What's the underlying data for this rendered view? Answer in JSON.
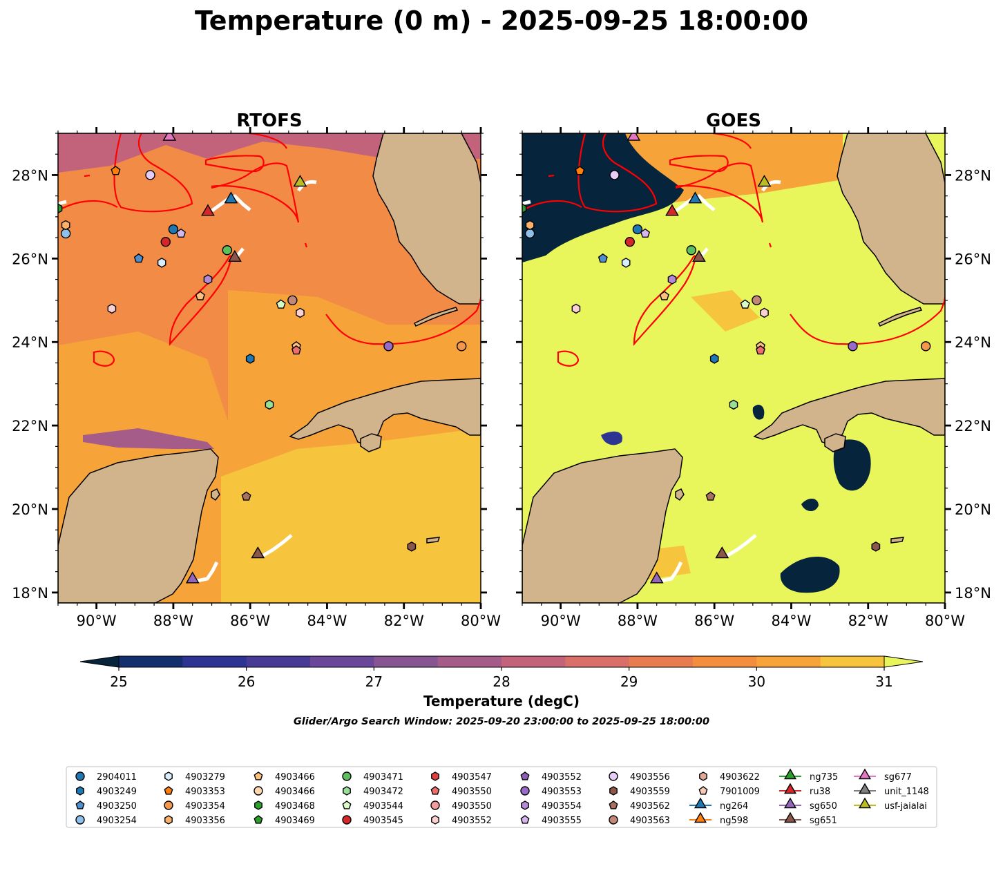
{
  "title": "Temperature (0 m) - 2025-09-25 18:00:00",
  "panels": [
    {
      "title": "RTOFS",
      "base_color": "#f18b45"
    },
    {
      "title": "GOES",
      "base_color": "#e8f65b"
    }
  ],
  "axes": {
    "x_ticks": [
      "90°W",
      "88°W",
      "86°W",
      "84°W",
      "82°W",
      "80°W"
    ],
    "x_values": [
      -90,
      -88,
      -86,
      -84,
      -82,
      -80
    ],
    "y_ticks": [
      "28°N",
      "26°N",
      "24°N",
      "22°N",
      "20°N",
      "18°N"
    ],
    "y_values": [
      28,
      26,
      24,
      22,
      20,
      18
    ],
    "lon_range": [
      -91,
      -80
    ],
    "lat_range": [
      17.75,
      29
    ]
  },
  "colorbar": {
    "label": "Temperature (degC)",
    "ticks": [
      "25",
      "26",
      "27",
      "28",
      "29",
      "30",
      "31"
    ],
    "range": [
      25,
      31
    ],
    "extend": "both",
    "colors": [
      "#06243b",
      "#132f6e",
      "#2e3491",
      "#483b96",
      "#6a4798",
      "#885593",
      "#a65c89",
      "#c3637b",
      "#d86f68",
      "#e87c51",
      "#f28e3e",
      "#f6a43a",
      "#f7c43e",
      "#e9f65b"
    ]
  },
  "window_text": "Glider/Argo Search Window: 2025-09-20 23:00:00 to 2025-09-25 18:00:00",
  "legend": [
    {
      "name": "2904011",
      "marker": "circle",
      "color": "#1f77b4"
    },
    {
      "name": "4903249",
      "marker": "hexagon",
      "color": "#1f77b4"
    },
    {
      "name": "4903250",
      "marker": "pentagon",
      "color": "#4f8fd0"
    },
    {
      "name": "4903254",
      "marker": "circle",
      "color": "#8fc0ea"
    },
    {
      "name": "4903279",
      "marker": "hexagon",
      "color": "#d7eefc"
    },
    {
      "name": "4903353",
      "marker": "pentagon",
      "color": "#ff7f0e"
    },
    {
      "name": "4903354",
      "marker": "circle",
      "color": "#f4974a"
    },
    {
      "name": "4903356",
      "marker": "hexagon",
      "color": "#fbb06b"
    },
    {
      "name": "4903466",
      "marker": "pentagon",
      "color": "#fcc17a"
    },
    {
      "name": "4903466",
      "marker": "circle",
      "color": "#fdd7b0"
    },
    {
      "name": "4903468",
      "marker": "hexagon",
      "color": "#2ca02c"
    },
    {
      "name": "4903469",
      "marker": "pentagon",
      "color": "#2ca02c"
    },
    {
      "name": "4903471",
      "marker": "circle",
      "color": "#5cc15c"
    },
    {
      "name": "4903472",
      "marker": "hexagon",
      "color": "#98e098"
    },
    {
      "name": "4903544",
      "marker": "pentagon",
      "color": "#d8fbc8"
    },
    {
      "name": "4903545",
      "marker": "circle",
      "color": "#d62728"
    },
    {
      "name": "4903547",
      "marker": "hexagon",
      "color": "#e04040"
    },
    {
      "name": "4903550",
      "marker": "pentagon",
      "color": "#ee6e6e"
    },
    {
      "name": "4903550",
      "marker": "circle",
      "color": "#f59b9b"
    },
    {
      "name": "4903552",
      "marker": "hexagon",
      "color": "#fcd1d1"
    },
    {
      "name": "4903552",
      "marker": "pentagon",
      "color": "#8c5fb5"
    },
    {
      "name": "4903553",
      "marker": "circle",
      "color": "#9a6ac8"
    },
    {
      "name": "4903554",
      "marker": "hexagon",
      "color": "#b48ad8"
    },
    {
      "name": "4903555",
      "marker": "pentagon",
      "color": "#d6b6ee"
    },
    {
      "name": "4903556",
      "marker": "circle",
      "color": "#e6cdf8"
    },
    {
      "name": "4903559",
      "marker": "hexagon",
      "color": "#8c564b"
    },
    {
      "name": "4903562",
      "marker": "pentagon",
      "color": "#a8715f"
    },
    {
      "name": "4903563",
      "marker": "circle",
      "color": "#c3877a"
    },
    {
      "name": "4903622",
      "marker": "hexagon",
      "color": "#e0a896"
    },
    {
      "name": "7901009",
      "marker": "pentagon",
      "color": "#f6c9b8"
    },
    {
      "name": "ng264",
      "marker": "triangle-line",
      "color": "#1f77b4"
    },
    {
      "name": "ng598",
      "marker": "triangle-line",
      "color": "#ff7f0e"
    },
    {
      "name": "ng735",
      "marker": "triangle-line",
      "color": "#2ca02c"
    },
    {
      "name": "ru38",
      "marker": "triangle-line",
      "color": "#d62728"
    },
    {
      "name": "sg650",
      "marker": "triangle-line",
      "color": "#9467bd"
    },
    {
      "name": "sg651",
      "marker": "triangle-line",
      "color": "#8c564b"
    },
    {
      "name": "sg677",
      "marker": "triangle-line",
      "color": "#e377c2"
    },
    {
      "name": "unit_1148",
      "marker": "triangle-line",
      "color": "#7f7f7f"
    },
    {
      "name": "usf-jaialai",
      "marker": "triangle-line",
      "color": "#bcbd22"
    }
  ],
  "map_features": {
    "land_color": "#d2b48c",
    "contour_color": "#ff0000",
    "track_color": "#ffffff",
    "cloud_color": "#06243b"
  },
  "argo_points": [
    {
      "name": "2904011",
      "lon": -88.0,
      "lat": 26.7
    },
    {
      "name": "4903249",
      "lon": -86.0,
      "lat": 23.6
    },
    {
      "name": "4903250",
      "lon": -88.9,
      "lat": 26.0
    },
    {
      "name": "4903254",
      "lon": -90.8,
      "lat": 26.6
    },
    {
      "name": "4903279",
      "lon": -88.3,
      "lat": 25.9
    },
    {
      "name": "4903353",
      "lon": -89.5,
      "lat": 28.1
    },
    {
      "name": "4903354",
      "lon": -80.5,
      "lat": 23.9
    },
    {
      "name": "4903356",
      "lon": -90.8,
      "lat": 26.8
    },
    {
      "name": "4903466",
      "lon": -84.8,
      "lat": 23.9
    },
    {
      "name": "4903466",
      "lon": -87.3,
      "lat": 25.1
    },
    {
      "name": "4903468",
      "lon": -91.0,
      "lat": 27.2
    },
    {
      "name": "4903471",
      "lon": -86.6,
      "lat": 26.2
    },
    {
      "name": "4903472",
      "lon": -85.5,
      "lat": 22.5
    },
    {
      "name": "4903544",
      "lon": -85.2,
      "lat": 24.9
    },
    {
      "name": "4903545",
      "lon": -88.2,
      "lat": 26.4
    },
    {
      "name": "4903550",
      "lon": -84.8,
      "lat": 23.8
    },
    {
      "name": "4903552",
      "lon": -89.6,
      "lat": 24.8
    },
    {
      "name": "4903552",
      "lon": -84.7,
      "lat": 24.7
    },
    {
      "name": "4903553",
      "lon": -82.4,
      "lat": 23.9
    },
    {
      "name": "4903554",
      "lon": -87.1,
      "lat": 25.5
    },
    {
      "name": "4903555",
      "lon": -87.8,
      "lat": 26.6
    },
    {
      "name": "4903556",
      "lon": -88.6,
      "lat": 28.0
    },
    {
      "name": "4903559",
      "lon": -81.8,
      "lat": 19.1
    },
    {
      "name": "4903562",
      "lon": -86.1,
      "lat": 20.3
    },
    {
      "name": "4903563",
      "lon": -84.9,
      "lat": 25.0
    }
  ],
  "gliders": [
    {
      "name": "sg677",
      "lon": -88.1,
      "lat": 28.9
    },
    {
      "name": "ru38",
      "lon": -87.1,
      "lat": 27.1
    },
    {
      "name": "ng264",
      "lon": -86.5,
      "lat": 27.4
    },
    {
      "name": "usf-jaialai",
      "lon": -84.7,
      "lat": 27.8
    },
    {
      "name": "sg651",
      "lon": -86.4,
      "lat": 26.0
    },
    {
      "name": "sg651",
      "lon": -85.8,
      "lat": 18.9
    },
    {
      "name": "sg650",
      "lon": -87.5,
      "lat": 18.3
    }
  ]
}
